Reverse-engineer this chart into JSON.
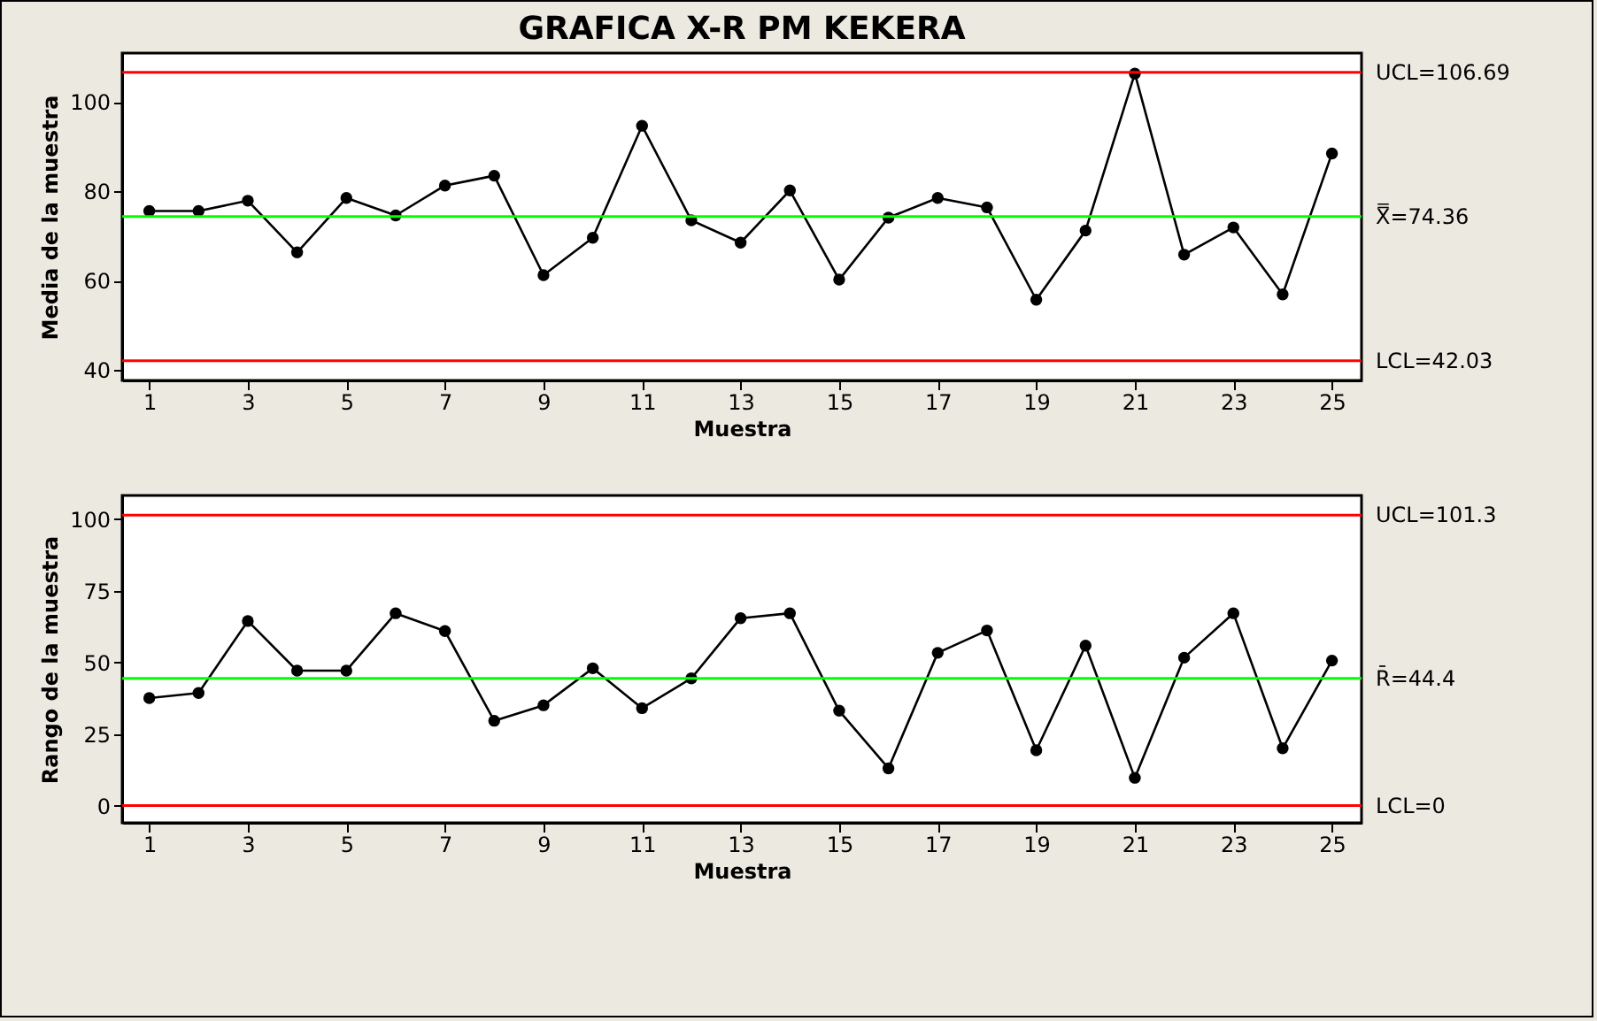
{
  "chart_data": [
    {
      "type": "line",
      "title": "GRAFICA X-R PM KEKERA",
      "xlabel": "Muestra",
      "ylabel": "Media de la muestra",
      "x": [
        1,
        2,
        3,
        4,
        5,
        6,
        7,
        8,
        9,
        10,
        11,
        12,
        13,
        14,
        15,
        16,
        17,
        18,
        19,
        20,
        21,
        22,
        23,
        24,
        25
      ],
      "series": [
        {
          "color": "#000000",
          "values": [
            75.6,
            75.6,
            77.9,
            66.3,
            78.5,
            74.6,
            81.3,
            83.5,
            61.2,
            69.6,
            94.7,
            73.5,
            68.5,
            80.2,
            60.2,
            74.1,
            78.5,
            76.4,
            55.7,
            71.2,
            106.4,
            65.8,
            71.9,
            56.9,
            88.5
          ]
        }
      ],
      "xlim": [
        0.45,
        25.6
      ],
      "xticks": [
        1,
        3,
        5,
        7,
        9,
        11,
        13,
        15,
        17,
        19,
        21,
        23,
        25
      ],
      "ylim": [
        37.6,
        111
      ],
      "yticks": [
        40,
        60,
        80,
        100
      ],
      "ref_lines": [
        {
          "axis": "y",
          "value": 106.69,
          "label": "UCL=106.69",
          "color": "#ff0000"
        },
        {
          "axis": "y",
          "value": 74.36,
          "label": "X̿=74.36",
          "color": "#00ff00"
        },
        {
          "axis": "y",
          "value": 42.03,
          "label": "LCL=42.03",
          "color": "#ff0000"
        }
      ],
      "grid": false,
      "marker": "circle",
      "line_style": "solid"
    },
    {
      "type": "line",
      "xlabel": "Muestra",
      "ylabel": "Rango de la muestra",
      "x": [
        1,
        2,
        3,
        4,
        5,
        6,
        7,
        8,
        9,
        10,
        11,
        12,
        13,
        14,
        15,
        16,
        17,
        18,
        19,
        20,
        21,
        22,
        23,
        24,
        25
      ],
      "series": [
        {
          "color": "#000000",
          "values": [
            37.5,
            39.3,
            64.4,
            47.1,
            47.1,
            67.1,
            60.9,
            29.6,
            35.0,
            47.9,
            34.0,
            44.4,
            65.4,
            67.1,
            33.1,
            13.0,
            53.3,
            61.1,
            19.3,
            55.8,
            9.7,
            51.6,
            67.1,
            20.0,
            50.6
          ]
        }
      ],
      "xlim": [
        0.45,
        25.6
      ],
      "xticks": [
        1,
        3,
        5,
        7,
        9,
        11,
        13,
        15,
        17,
        19,
        21,
        23,
        25
      ],
      "ylim": [
        -6,
        108.2
      ],
      "yticks": [
        0,
        25,
        50,
        75,
        100
      ],
      "ref_lines": [
        {
          "axis": "y",
          "value": 101.3,
          "label": "UCL=101.3",
          "color": "#ff0000"
        },
        {
          "axis": "y",
          "value": 44.4,
          "label": "R̄=44.4",
          "color": "#00ff00"
        },
        {
          "axis": "y",
          "value": 0,
          "label": "LCL=0",
          "color": "#ff0000"
        }
      ],
      "grid": false,
      "marker": "circle",
      "line_style": "solid"
    }
  ]
}
